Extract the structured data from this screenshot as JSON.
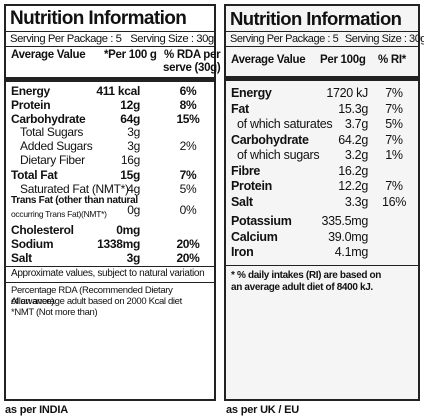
{
  "india": {
    "title": "Nutrition Information",
    "serving_package": "Serving Per Package : 5",
    "serving_size": "Serving Size : 30g",
    "header": {
      "avg": "Average Value",
      "per": "*Per 100 g",
      "rda1": "% RDA per",
      "rda2": "serve (30g)"
    },
    "rows": [
      {
        "name": "Energy",
        "value": "411 kcal",
        "rda": "6%",
        "bold": true
      },
      {
        "name": "Protein",
        "value": "12g",
        "rda": "8%",
        "bold": true
      },
      {
        "name": "Carbohydrate",
        "value": "64g",
        "rda": "15%",
        "bold": true
      },
      {
        "name": "Total Sugars",
        "value": "3g",
        "rda": "",
        "bold": false
      },
      {
        "name": "Added Sugars",
        "value": "3g",
        "rda": "2%",
        "bold": false
      },
      {
        "name": "Dietary Fiber",
        "value": "16g",
        "rda": "",
        "bold": false
      },
      {
        "name": "Total Fat",
        "value": "15g",
        "rda": "7%",
        "bold": true
      },
      {
        "name": "Saturated Fat (NMT*)",
        "value": "4g",
        "rda": "5%",
        "bold": false
      }
    ],
    "trans_fat": {
      "line1": "Trans Fat (other than natural",
      "line2": "occurring Trans Fat)(NMT*)",
      "value": "0g",
      "rda": "0%"
    },
    "rows2": [
      {
        "name": "Cholesterol",
        "value": "0mg",
        "rda": "",
        "bold": true
      },
      {
        "name": "Sodium",
        "value": "1338mg",
        "rda": "20%",
        "bold": true
      },
      {
        "name": "Salt",
        "value": "3g",
        "rda": "20%",
        "bold": true
      }
    ],
    "approx": "Approximate values, subject to natural variation",
    "footnote1": "Percentage RDA (Recommended Dietary Allowance)",
    "footnote2": "of an average adult based on 2000 Kcal diet",
    "footnote3": "*NMT (Not more than)",
    "caption": "as per INDIA"
  },
  "uk": {
    "title": "Nutrition Information",
    "serving_package": "Serving Per Package : 5",
    "serving_size": "Serving Size : 30g",
    "header": {
      "avg": "Average Value",
      "per": "Per 100g",
      "ri": "% RI*"
    },
    "rows": [
      {
        "name": "Energy",
        "value": "1720 kJ",
        "ri": "7%",
        "bold": true
      },
      {
        "name": "Fat",
        "value": "15.3g",
        "ri": "7%",
        "bold": true
      },
      {
        "name": "of which saturates",
        "value": "3.7g",
        "ri": "5%",
        "bold": false
      },
      {
        "name": "Carbohydrate",
        "value": "64.2g",
        "ri": "7%",
        "bold": true
      },
      {
        "name": "of which sugars",
        "value": "3.2g",
        "ri": "1%",
        "bold": false
      },
      {
        "name": "Fibre",
        "value": "16.2g",
        "ri": "",
        "bold": true
      },
      {
        "name": "Protein",
        "value": "12.2g",
        "ri": "7%",
        "bold": true
      },
      {
        "name": "Salt",
        "value": "3.3g",
        "ri": "16%",
        "bold": true
      },
      {
        "name": "Potassium",
        "value": "335.5mg",
        "ri": "",
        "bold": true
      },
      {
        "name": "Calcium",
        "value": "39.0mg",
        "ri": "",
        "bold": true
      },
      {
        "name": "Iron",
        "value": "4.1mg",
        "ri": "",
        "bold": true
      }
    ],
    "footnote1": "* % daily intakes (RI) are based on",
    "footnote2": "an average adult diet of 8400 kJ.",
    "caption": "as per UK / EU"
  }
}
